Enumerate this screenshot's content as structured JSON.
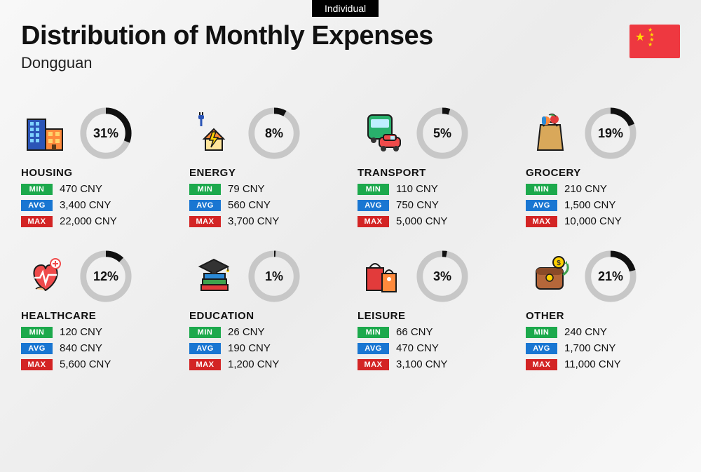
{
  "tab_label": "Individual",
  "title": "Distribution of Monthly Expenses",
  "subtitle": "Dongguan",
  "currency": "CNY",
  "badges": {
    "min": {
      "label": "MIN",
      "color": "#1ca94c"
    },
    "avg": {
      "label": "AVG",
      "color": "#1976d2"
    },
    "max": {
      "label": "MAX",
      "color": "#d32424"
    }
  },
  "donut": {
    "track_color": "#c7c7c7",
    "fill_color": "#111111",
    "stroke_width": 9
  },
  "categories": [
    {
      "name": "HOUSING",
      "pct": 31,
      "min": "470",
      "avg": "3,400",
      "max": "22,000",
      "icon": "housing"
    },
    {
      "name": "ENERGY",
      "pct": 8,
      "min": "79",
      "avg": "560",
      "max": "3,700",
      "icon": "energy"
    },
    {
      "name": "TRANSPORT",
      "pct": 5,
      "min": "110",
      "avg": "750",
      "max": "5,000",
      "icon": "transport"
    },
    {
      "name": "GROCERY",
      "pct": 19,
      "min": "210",
      "avg": "1,500",
      "max": "10,000",
      "icon": "grocery"
    },
    {
      "name": "HEALTHCARE",
      "pct": 12,
      "min": "120",
      "avg": "840",
      "max": "5,600",
      "icon": "healthcare"
    },
    {
      "name": "EDUCATION",
      "pct": 1,
      "min": "26",
      "avg": "190",
      "max": "1,200",
      "icon": "education"
    },
    {
      "name": "LEISURE",
      "pct": 3,
      "min": "66",
      "avg": "470",
      "max": "3,100",
      "icon": "leisure"
    },
    {
      "name": "OTHER",
      "pct": 21,
      "min": "240",
      "avg": "1,700",
      "max": "11,000",
      "icon": "other"
    }
  ]
}
